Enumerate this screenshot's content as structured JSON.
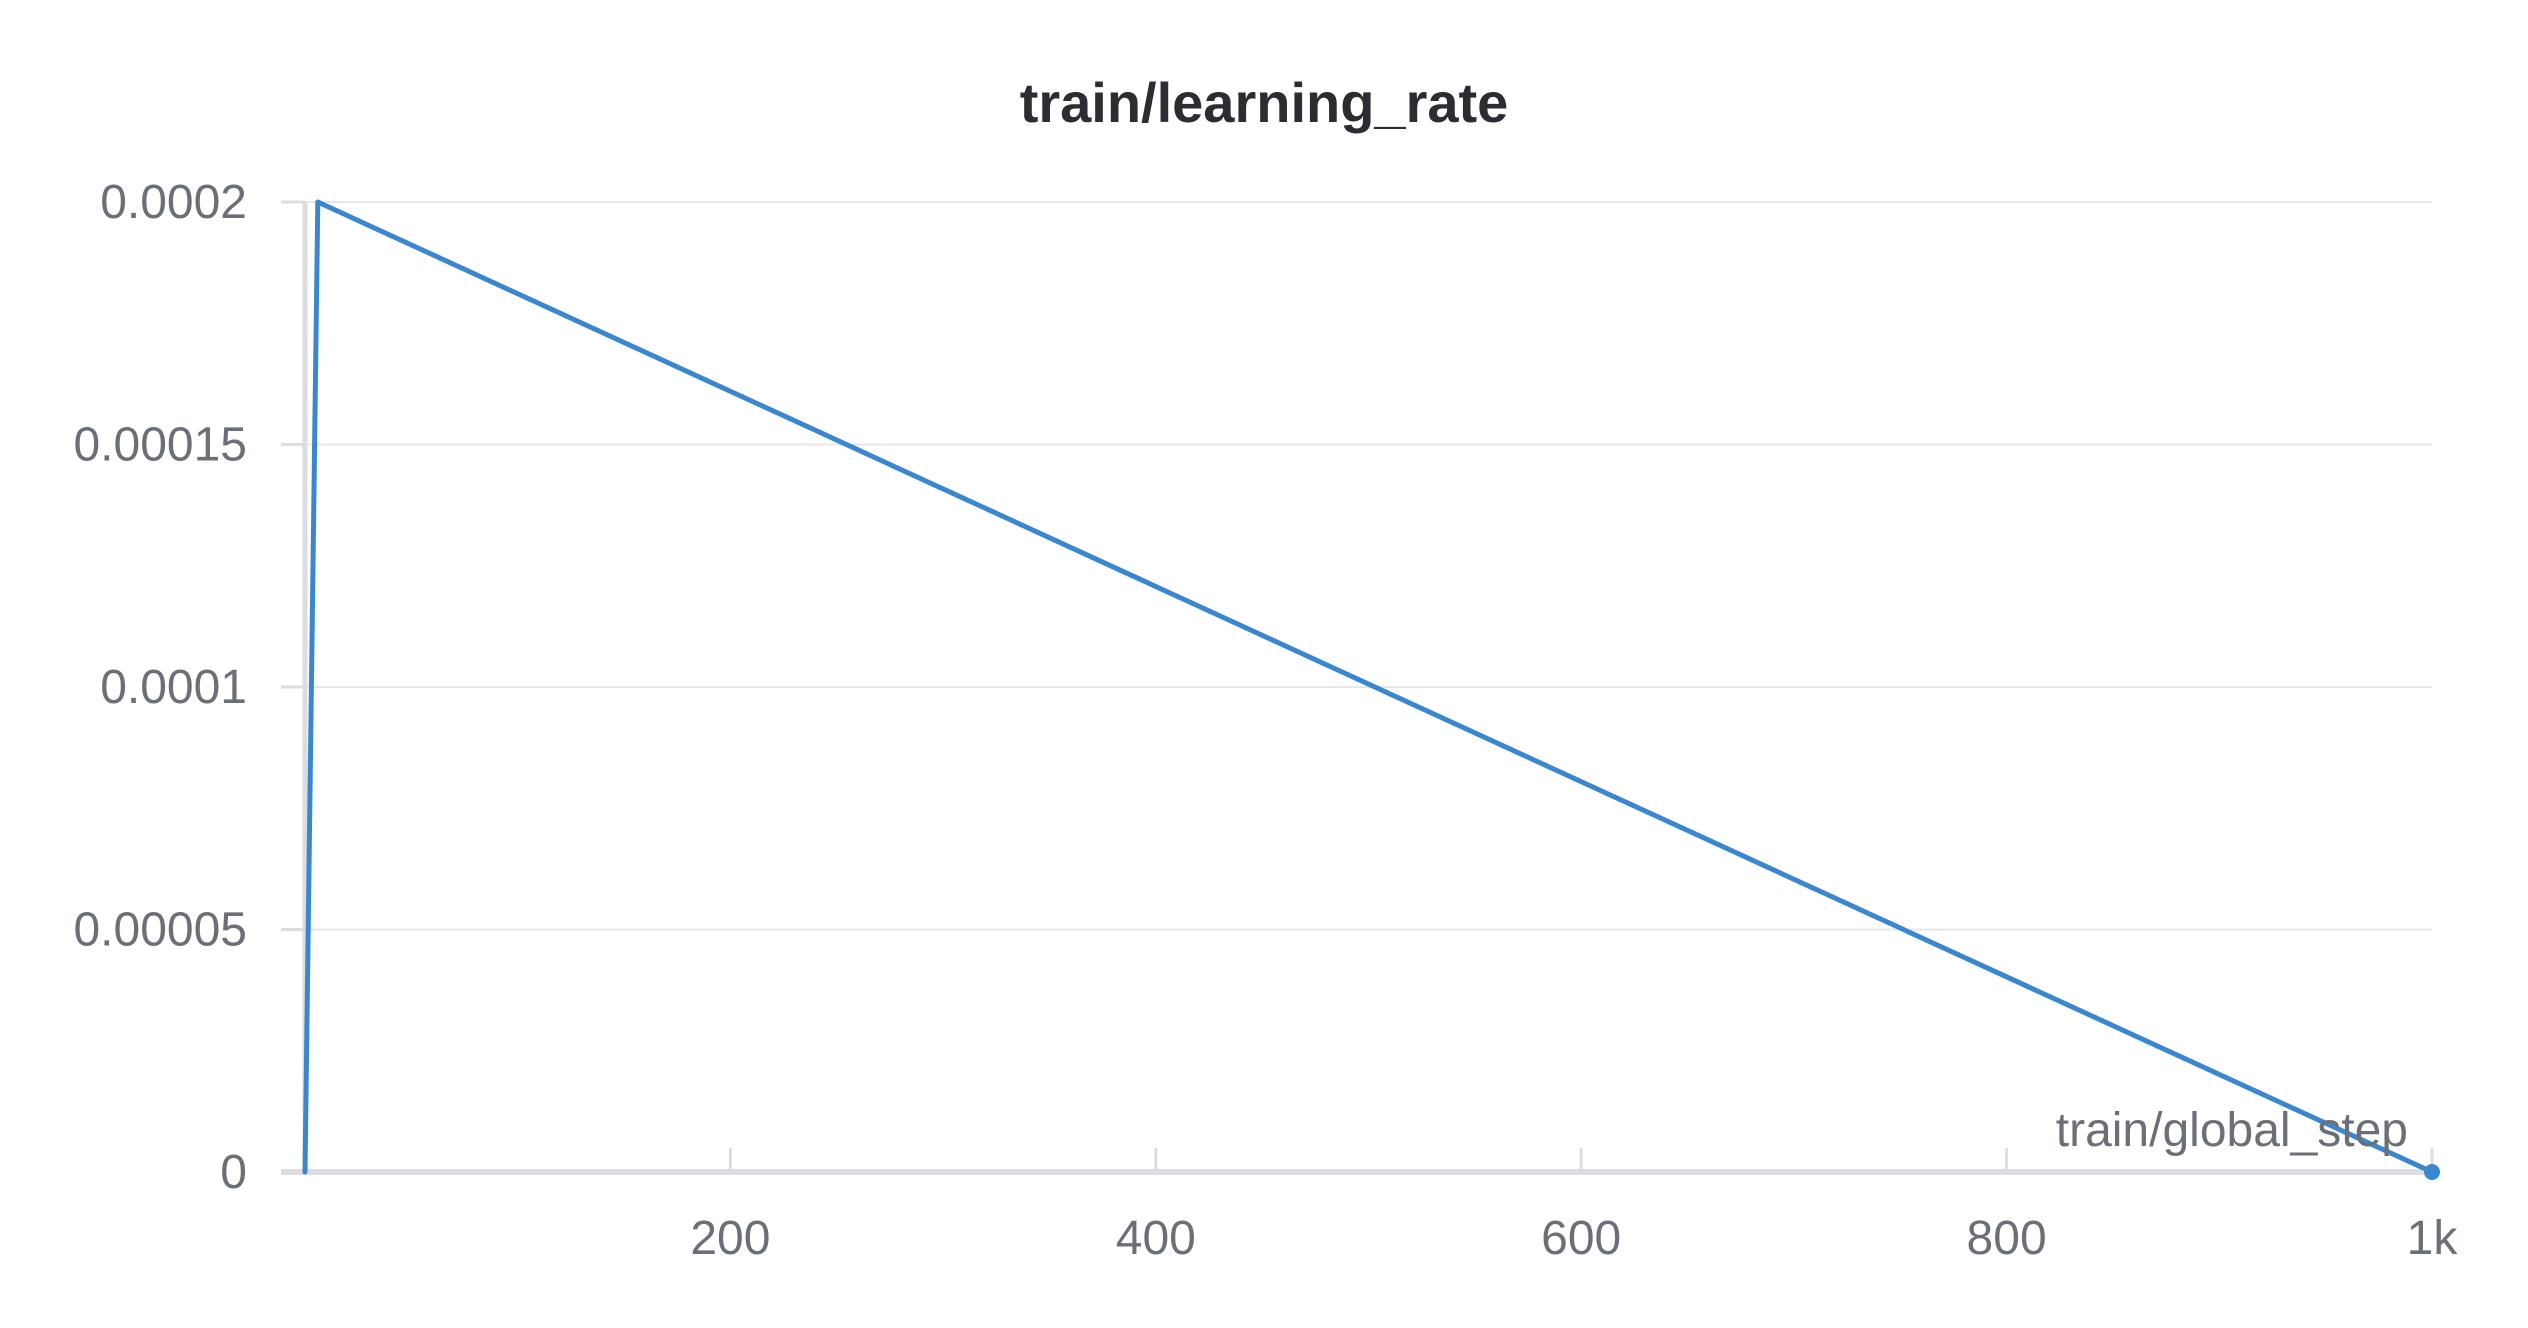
{
  "chart_data": {
    "type": "line",
    "title": "train/learning_rate",
    "xlabel": "train/global_step",
    "ylabel": "",
    "xlim": [
      0,
      1000
    ],
    "ylim": [
      0,
      0.0002
    ],
    "x_ticks": [
      {
        "value": 200,
        "label": "200"
      },
      {
        "value": 400,
        "label": "400"
      },
      {
        "value": 600,
        "label": "600"
      },
      {
        "value": 800,
        "label": "800"
      },
      {
        "value": 1000,
        "label": "1k"
      }
    ],
    "y_ticks": [
      {
        "value": 0,
        "label": "0"
      },
      {
        "value": 5e-05,
        "label": "0.00005"
      },
      {
        "value": 0.0001,
        "label": "0.0001"
      },
      {
        "value": 0.00015,
        "label": "0.00015"
      },
      {
        "value": 0.0002,
        "label": "0.0002"
      }
    ],
    "grid": true,
    "series": [
      {
        "color": "#3a87d0",
        "x": [
          0,
          6,
          1000
        ],
        "y": [
          0,
          0.0002,
          0
        ]
      }
    ]
  },
  "colors": {
    "grid": "#e6e7ea",
    "axis": "#dcdde0",
    "text": "#6b6f78",
    "title": "#2b2d33"
  }
}
